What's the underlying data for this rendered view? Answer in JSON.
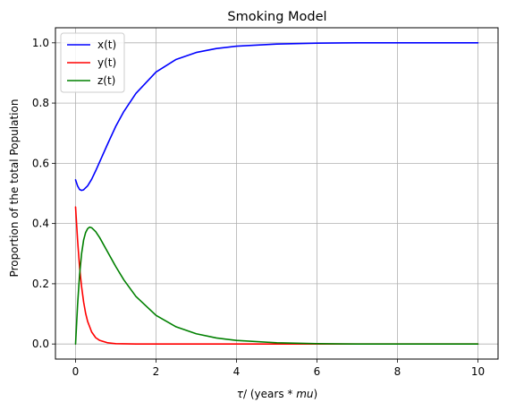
{
  "chart_data": {
    "type": "line",
    "title": "Smoking Model",
    "xlabel_prefix": "τ",
    "xlabel_middle": "/ (years * ",
    "xlabel_unit": "mu",
    "xlabel_suffix": ")",
    "ylabel": "Proportion of the total Population",
    "xlim": [
      -0.5,
      10.5
    ],
    "ylim": [
      -0.05,
      1.05
    ],
    "xticks": [
      0,
      2,
      4,
      6,
      8,
      10
    ],
    "xtick_labels": [
      "0",
      "2",
      "4",
      "6",
      "8",
      "10"
    ],
    "yticks": [
      0.0,
      0.2,
      0.4,
      0.6,
      0.8,
      1.0
    ],
    "ytick_labels": [
      "0.0",
      "0.2",
      "0.4",
      "0.6",
      "0.8",
      "1.0"
    ],
    "grid": true,
    "legend_position": "top-left",
    "series": [
      {
        "name": "x(t)",
        "color": "#0000ff",
        "x": [
          0,
          0.05,
          0.1,
          0.15,
          0.2,
          0.3,
          0.4,
          0.5,
          0.6,
          0.8,
          1.0,
          1.2,
          1.5,
          2.0,
          2.5,
          3.0,
          3.5,
          4.0,
          5.0,
          6.0,
          7.0,
          8.0,
          9.0,
          10.0
        ],
        "values": [
          0.545,
          0.525,
          0.513,
          0.51,
          0.512,
          0.525,
          0.547,
          0.575,
          0.605,
          0.665,
          0.723,
          0.772,
          0.832,
          0.903,
          0.945,
          0.968,
          0.981,
          0.989,
          0.996,
          0.999,
          1.0,
          1.0,
          1.0,
          1.0
        ]
      },
      {
        "name": "y(t)",
        "color": "#ff0000",
        "x": [
          0,
          0.05,
          0.1,
          0.15,
          0.2,
          0.25,
          0.3,
          0.4,
          0.5,
          0.6,
          0.8,
          1.0,
          1.5,
          2.0,
          3.0,
          5.0,
          10.0
        ],
        "values": [
          0.455,
          0.345,
          0.255,
          0.19,
          0.14,
          0.102,
          0.075,
          0.04,
          0.021,
          0.012,
          0.004,
          0.001,
          0.0,
          0.0,
          0.0,
          0.0,
          0.0
        ]
      },
      {
        "name": "z(t)",
        "color": "#008000",
        "x": [
          0,
          0.05,
          0.1,
          0.15,
          0.2,
          0.25,
          0.3,
          0.35,
          0.4,
          0.5,
          0.6,
          0.8,
          1.0,
          1.2,
          1.5,
          2.0,
          2.5,
          3.0,
          3.5,
          4.0,
          5.0,
          6.0,
          7.0,
          8.0,
          10.0
        ],
        "values": [
          0.0,
          0.13,
          0.23,
          0.3,
          0.345,
          0.37,
          0.383,
          0.388,
          0.386,
          0.373,
          0.353,
          0.305,
          0.257,
          0.213,
          0.158,
          0.095,
          0.057,
          0.034,
          0.02,
          0.012,
          0.004,
          0.001,
          0.0,
          0.0,
          0.0
        ]
      }
    ]
  }
}
